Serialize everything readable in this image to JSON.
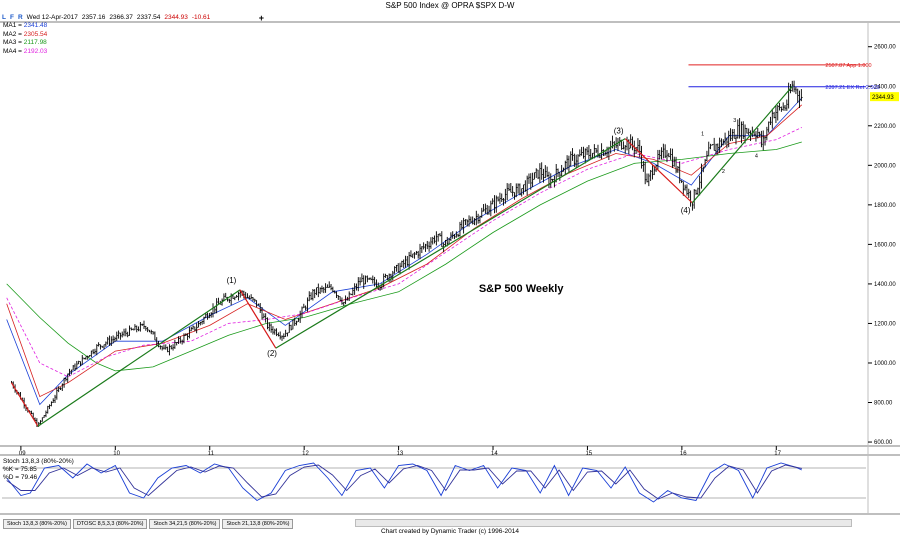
{
  "window": {
    "title": "S&P 500 Index @ OPRA $SPX     D-W"
  },
  "toolbar": {
    "l": "L",
    "f": "F",
    "r": "R",
    "date": "Wed 12-Apr-2017",
    "open": "2357.16",
    "high": "2366.37",
    "low": "2337.54",
    "close": "2344.93",
    "change": "-10.61",
    "plus": "+"
  },
  "moving_averages": [
    {
      "label": "MA1 = ",
      "value": "2341.48",
      "color": "#1a3fd6"
    },
    {
      "label": "MA2 = ",
      "value": "2305.54",
      "color": "#d62020"
    },
    {
      "label": "MA3 = ",
      "value": "2117.98",
      "color": "#1a9a1a"
    },
    {
      "label": "MA4 = ",
      "value": "2192.03",
      "color": "#e020e0"
    }
  ],
  "stoch_legend": {
    "name": "Stoch 13,8,3 (80%-20%)",
    "k": "%K = 75.85",
    "d": "%D = 79.46"
  },
  "tabs": [
    {
      "label": "Stoch 13,8,3 (80%-20%)"
    },
    {
      "label": "DTOSC 8,5,3,3 (80%-20%)"
    },
    {
      "label": "Stoch 34,21,5 (80%-20%)"
    },
    {
      "label": "Stoch 21,13,8 (80%-20%)"
    }
  ],
  "footer": {
    "credit": "Chart created by Dynamic Trader  (c) 1996-2014"
  },
  "chart_data": [
    {
      "type": "line",
      "title": "S&P 500 Weekly",
      "series": [
        {
          "name": "",
          "color": "#000000",
          "x": [
            2008.9,
            2009.18,
            2009.5,
            2009.8,
            2010.1,
            2010.32,
            2010.52,
            2010.65,
            2010.85,
            2011.0,
            2011.15,
            2011.32,
            2011.5,
            2011.62,
            2011.78,
            2011.95,
            2012.1,
            2012.3,
            2012.43,
            2012.6,
            2012.8,
            2012.9,
            2013.0,
            2013.2,
            2013.4,
            2013.48,
            2013.7,
            2014.0,
            2014.1,
            2014.3,
            2014.5,
            2014.6,
            2014.8,
            2014.95,
            2015.2,
            2015.4,
            2015.55,
            2015.63,
            2015.7,
            2015.85,
            2016.0,
            2016.11,
            2016.3,
            2016.5,
            2016.6,
            2016.8,
            2016.85,
            2016.95,
            2017.1,
            2017.17,
            2017.27
          ],
          "y": [
            900,
            680,
            950,
            1080,
            1150,
            1190,
            1060,
            1100,
            1180,
            1260,
            1320,
            1360,
            1300,
            1180,
            1140,
            1240,
            1360,
            1380,
            1300,
            1420,
            1400,
            1450,
            1480,
            1560,
            1640,
            1600,
            1700,
            1800,
            1850,
            1880,
            1970,
            1920,
            2020,
            2050,
            2080,
            2120,
            2080,
            1900,
            2000,
            2080,
            1920,
            1820,
            2080,
            2140,
            2180,
            2170,
            2100,
            2260,
            2300,
            2400,
            2345
          ]
        }
      ],
      "x_ticks": [
        {
          "value": 2009.0,
          "label": "09"
        },
        {
          "value": 2010.0,
          "label": "10"
        },
        {
          "value": 2011.0,
          "label": "11"
        },
        {
          "value": 2012.0,
          "label": "12"
        },
        {
          "value": 2013.0,
          "label": "13"
        },
        {
          "value": 2014.0,
          "label": "14"
        },
        {
          "value": 2015.0,
          "label": "15"
        },
        {
          "value": 2016.0,
          "label": "16"
        },
        {
          "value": 2017.0,
          "label": "17"
        }
      ],
      "y_ticks": [
        {
          "value": 600,
          "label": "600.00"
        },
        {
          "value": 800,
          "label": "800.00"
        },
        {
          "value": 1000,
          "label": "1000.00"
        },
        {
          "value": 1200,
          "label": "1200.00"
        },
        {
          "value": 1400,
          "label": "1400.00"
        },
        {
          "value": 1600,
          "label": "1600.00"
        },
        {
          "value": 1800,
          "label": "1800.00"
        },
        {
          "value": 2000,
          "label": "2000.00"
        },
        {
          "value": 2200,
          "label": "2200.00"
        },
        {
          "value": 2400,
          "label": "2400.00"
        },
        {
          "value": 2600,
          "label": "2600.00"
        }
      ],
      "xlim": [
        2008.8,
        2017.95
      ],
      "ylim": [
        580,
        2720
      ],
      "reference_lines": [
        {
          "value": 2507.87,
          "label": "2507.87 App 1.000",
          "color": "#e02020"
        },
        {
          "value": 2397.21,
          "label": "2397.21 EX Ret 2.000",
          "color": "#2020e0"
        }
      ],
      "last_price_label": "2344.93",
      "wave_labels": [
        {
          "text": "(1)",
          "x": 2011.23,
          "y": 1405
        },
        {
          "text": "(2)",
          "x": 2011.66,
          "y": 1035
        },
        {
          "text": "(3)",
          "x": 2015.33,
          "y": 2160
        },
        {
          "text": "(4)",
          "x": 2016.04,
          "y": 1760
        },
        {
          "text": "1",
          "x": 2016.22,
          "y": 2150
        },
        {
          "text": "2",
          "x": 2016.44,
          "y": 1960
        },
        {
          "text": "3",
          "x": 2016.56,
          "y": 2220
        },
        {
          "text": "4",
          "x": 2016.79,
          "y": 2040
        }
      ],
      "trend_lines": [
        {
          "color": "#d61a1a",
          "points": [
            [
              2008.9,
              900
            ],
            [
              2009.18,
              680
            ]
          ]
        },
        {
          "color": "#1a7a1a",
          "points": [
            [
              2009.18,
              680
            ],
            [
              2011.32,
              1370
            ]
          ]
        },
        {
          "color": "#d61a1a",
          "points": [
            [
              2011.32,
              1370
            ],
            [
              2011.7,
              1075
            ]
          ]
        },
        {
          "color": "#1a7a1a",
          "points": [
            [
              2011.7,
              1075
            ],
            [
              2015.4,
              2135
            ]
          ]
        },
        {
          "color": "#d61a1a",
          "points": [
            [
              2015.4,
              2135
            ],
            [
              2016.11,
              1810
            ]
          ]
        },
        {
          "color": "#1a7a1a",
          "points": [
            [
              2016.11,
              1810
            ],
            [
              2017.17,
              2400
            ]
          ]
        }
      ],
      "moving_average_series": [
        {
          "color": "#1a3fd6",
          "dash": "",
          "x": [
            2008.85,
            2009.2,
            2009.5,
            2010.0,
            2010.5,
            2011.0,
            2011.4,
            2011.8,
            2012.3,
            2012.8,
            2013.3,
            2013.8,
            2014.3,
            2014.8,
            2015.3,
            2015.7,
            2016.1,
            2016.5,
            2016.9,
            2017.27
          ],
          "y": [
            1220,
            790,
            940,
            1110,
            1110,
            1240,
            1330,
            1190,
            1360,
            1400,
            1550,
            1720,
            1860,
            1990,
            2080,
            2010,
            1900,
            2150,
            2150,
            2341
          ]
        },
        {
          "color": "#d62020",
          "dash": "",
          "x": [
            2008.85,
            2009.2,
            2009.5,
            2010.0,
            2010.5,
            2011.0,
            2011.4,
            2011.8,
            2012.3,
            2012.8,
            2013.3,
            2013.8,
            2014.3,
            2014.8,
            2015.3,
            2015.7,
            2016.1,
            2016.5,
            2016.9,
            2017.27
          ],
          "y": [
            1300,
            830,
            900,
            1060,
            1100,
            1190,
            1300,
            1220,
            1300,
            1380,
            1500,
            1680,
            1830,
            1960,
            2060,
            2030,
            1950,
            2110,
            2150,
            2306
          ]
        },
        {
          "color": "#1a9a1a",
          "dash": "",
          "x": [
            2008.85,
            2009.2,
            2009.5,
            2009.8,
            2010.0,
            2010.4,
            2010.8,
            2011.2,
            2011.6,
            2012.0,
            2012.5,
            2013.0,
            2013.5,
            2014.0,
            2014.5,
            2015.0,
            2015.5,
            2016.0,
            2016.5,
            2017.0,
            2017.27
          ],
          "y": [
            1400,
            1230,
            1100,
            1000,
            960,
            980,
            1060,
            1140,
            1200,
            1230,
            1300,
            1360,
            1500,
            1660,
            1800,
            1920,
            2010,
            2030,
            2060,
            2080,
            2118
          ]
        },
        {
          "color": "#e020e0",
          "dash": "3,2",
          "x": [
            2008.85,
            2009.2,
            2009.5,
            2009.9,
            2010.3,
            2010.8,
            2011.2,
            2011.6,
            2012.0,
            2012.5,
            2013.0,
            2013.5,
            2014.0,
            2014.5,
            2015.0,
            2015.5,
            2016.0,
            2016.5,
            2017.0,
            2017.27
          ],
          "y": [
            1330,
            1000,
            930,
            1030,
            1090,
            1110,
            1200,
            1220,
            1250,
            1330,
            1400,
            1560,
            1720,
            1860,
            1980,
            2060,
            2010,
            2080,
            2130,
            2192
          ]
        }
      ]
    },
    {
      "type": "line",
      "title": "Stoch 13,8,3 (80%-20%)",
      "ylim": [
        0,
        100
      ],
      "reference_lines": [
        {
          "value": 80
        },
        {
          "value": 20
        }
      ],
      "series": [
        {
          "name": "%K",
          "color": "#1a3fd6",
          "x": [
            2008.85,
            2009.0,
            2009.1,
            2009.25,
            2009.4,
            2009.55,
            2009.7,
            2009.85,
            2010.0,
            2010.15,
            2010.3,
            2010.45,
            2010.6,
            2010.75,
            2010.9,
            2011.05,
            2011.2,
            2011.35,
            2011.5,
            2011.65,
            2011.8,
            2011.95,
            2012.1,
            2012.25,
            2012.4,
            2012.55,
            2012.7,
            2012.85,
            2013.0,
            2013.15,
            2013.3,
            2013.45,
            2013.6,
            2013.75,
            2013.9,
            2014.05,
            2014.2,
            2014.35,
            2014.5,
            2014.65,
            2014.8,
            2014.95,
            2015.1,
            2015.25,
            2015.4,
            2015.55,
            2015.7,
            2015.85,
            2016.0,
            2016.15,
            2016.3,
            2016.45,
            2016.6,
            2016.75,
            2016.9,
            2017.05,
            2017.2,
            2017.27
          ],
          "y": [
            60,
            25,
            30,
            80,
            85,
            60,
            88,
            70,
            85,
            30,
            20,
            60,
            80,
            85,
            70,
            88,
            80,
            40,
            15,
            30,
            75,
            85,
            90,
            60,
            25,
            75,
            80,
            40,
            85,
            88,
            75,
            25,
            85,
            75,
            85,
            40,
            80,
            75,
            30,
            85,
            25,
            80,
            75,
            40,
            82,
            30,
            12,
            35,
            20,
            15,
            70,
            88,
            75,
            20,
            80,
            90,
            82,
            76
          ]
        },
        {
          "name": "%D",
          "color": "#333399",
          "x": [
            2008.85,
            2009.0,
            2009.15,
            2009.3,
            2009.45,
            2009.6,
            2009.75,
            2009.9,
            2010.05,
            2010.2,
            2010.35,
            2010.5,
            2010.65,
            2010.8,
            2010.95,
            2011.1,
            2011.25,
            2011.4,
            2011.55,
            2011.7,
            2011.85,
            2012.0,
            2012.15,
            2012.3,
            2012.45,
            2012.6,
            2012.75,
            2012.9,
            2013.05,
            2013.2,
            2013.35,
            2013.5,
            2013.65,
            2013.8,
            2013.95,
            2014.1,
            2014.25,
            2014.4,
            2014.55,
            2014.7,
            2014.85,
            2015.0,
            2015.15,
            2015.3,
            2015.45,
            2015.6,
            2015.75,
            2015.9,
            2016.05,
            2016.2,
            2016.35,
            2016.5,
            2016.65,
            2016.8,
            2016.95,
            2017.1,
            2017.27
          ],
          "y": [
            55,
            35,
            35,
            70,
            80,
            65,
            80,
            72,
            80,
            40,
            25,
            50,
            75,
            82,
            72,
            84,
            80,
            50,
            22,
            28,
            65,
            82,
            86,
            66,
            35,
            65,
            78,
            50,
            78,
            85,
            75,
            35,
            76,
            76,
            80,
            48,
            74,
            74,
            40,
            76,
            35,
            72,
            74,
            48,
            76,
            38,
            18,
            30,
            22,
            20,
            60,
            84,
            76,
            30,
            74,
            86,
            79
          ]
        }
      ]
    }
  ],
  "colors": {
    "price_bars": "#000000",
    "grid_separator": "#7f7f7f",
    "last_price_bg": "#ffff00",
    "stoch_k": "#1a3fd6",
    "stoch_d": "#333399"
  }
}
